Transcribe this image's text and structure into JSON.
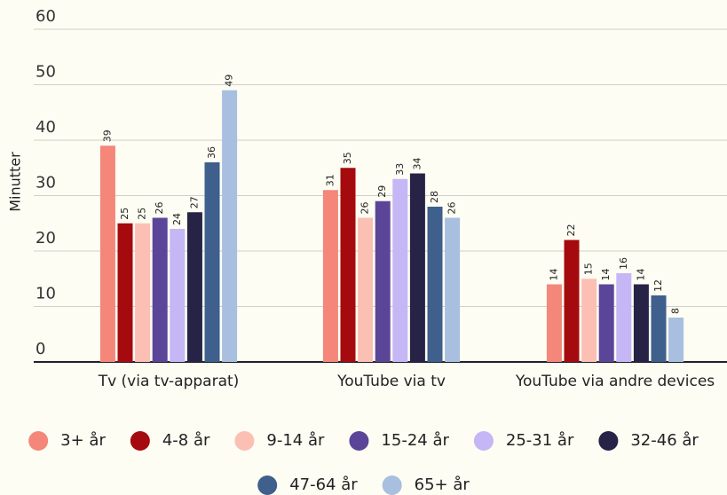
{
  "chart_data": {
    "type": "bar",
    "y_label": "Minutter",
    "categories": [
      "Tv (via tv-apparat)",
      "YouTube via tv",
      "YouTube via andre devices"
    ],
    "series": [
      {
        "name": "3+ år",
        "color": "#f4867a",
        "values": [
          39,
          31,
          14
        ]
      },
      {
        "name": "4-8 år",
        "color": "#a50a0e",
        "values": [
          25,
          35,
          22
        ]
      },
      {
        "name": "9-14 år",
        "color": "#fcbfb4",
        "values": [
          25,
          26,
          15
        ]
      },
      {
        "name": "15-24 år",
        "color": "#5b4599",
        "values": [
          26,
          29,
          14
        ]
      },
      {
        "name": "25-31 år",
        "color": "#c5b7f5",
        "values": [
          24,
          33,
          16
        ]
      },
      {
        "name": "32-46 år",
        "color": "#262347",
        "values": [
          27,
          34,
          14
        ]
      },
      {
        "name": "47-64 år",
        "color": "#3f5f8c",
        "values": [
          36,
          28,
          12
        ]
      },
      {
        "name": "65+ år",
        "color": "#a9bfdf",
        "values": [
          49,
          26,
          8
        ]
      }
    ],
    "ylim": [
      0,
      60
    ],
    "yticks": [
      0,
      10,
      20,
      30,
      40,
      50,
      60
    ],
    "grid": true,
    "legend": "bottom"
  }
}
